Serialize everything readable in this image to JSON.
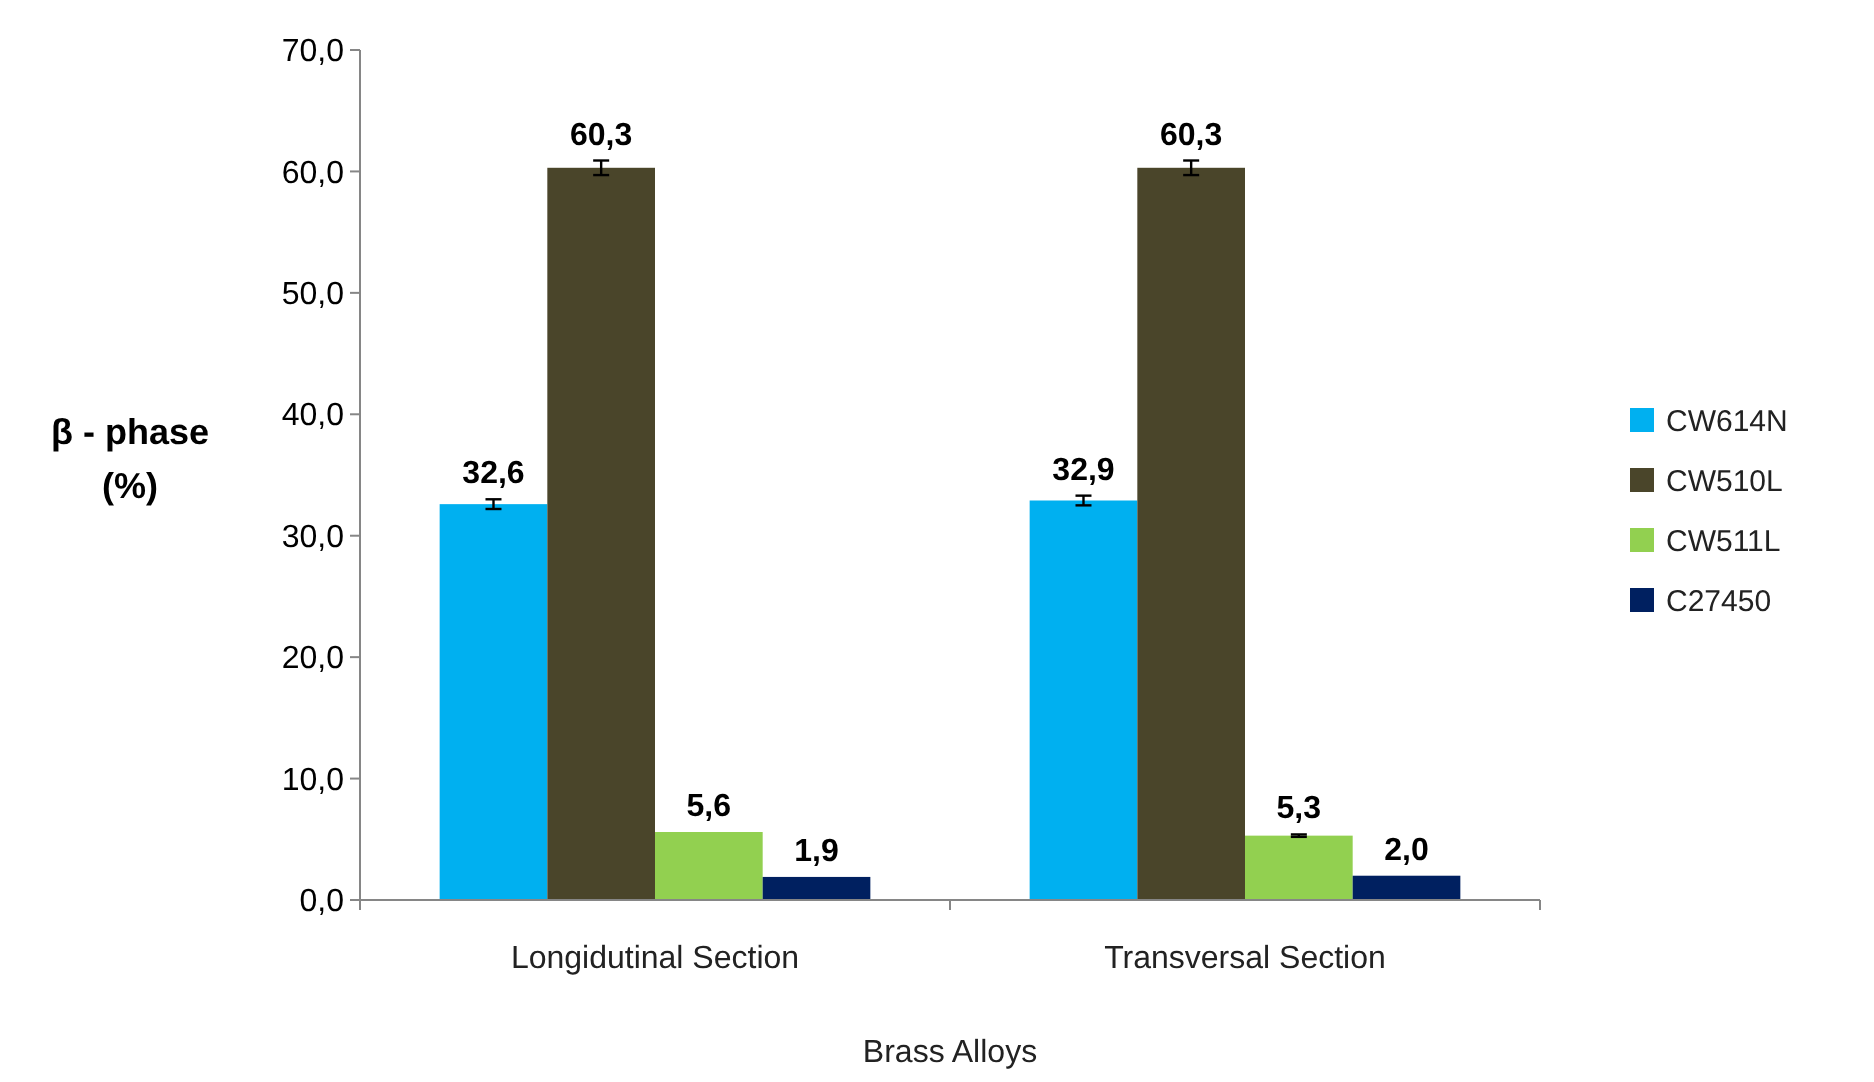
{
  "chart_data": {
    "type": "bar",
    "xlabel": "Brass Alloys",
    "ylabel": "β - phase (%)",
    "categories": [
      "Longidutinal Section",
      "Transversal Section"
    ],
    "series": [
      {
        "name": "CW614N",
        "color": "#00b0f0",
        "values": [
          32.6,
          32.9
        ],
        "errors": [
          0.4,
          0.4
        ],
        "value_labels": [
          "32,6",
          "32,9"
        ]
      },
      {
        "name": "CW510L",
        "color": "#4a452a",
        "values": [
          60.3,
          60.3
        ],
        "errors": [
          0.6,
          0.6
        ],
        "value_labels": [
          "60,3",
          "60,3"
        ]
      },
      {
        "name": "CW511L",
        "color": "#92d050",
        "values": [
          5.6,
          5.3
        ],
        "errors": [
          null,
          0.1
        ],
        "value_labels": [
          "5,6",
          "5,3"
        ]
      },
      {
        "name": "C27450",
        "color": "#002060",
        "values": [
          1.9,
          2.0
        ],
        "errors": [
          null,
          null
        ],
        "value_labels": [
          "1,9",
          "2,0"
        ]
      }
    ],
    "ylim": [
      0,
      70
    ],
    "yticks": [
      {
        "value": 0,
        "label": "0,0"
      },
      {
        "value": 10,
        "label": "10,0"
      },
      {
        "value": 20,
        "label": "20,0"
      },
      {
        "value": 30,
        "label": "30,0"
      },
      {
        "value": 40,
        "label": "40,0"
      },
      {
        "value": 50,
        "label": "50,0"
      },
      {
        "value": 60,
        "label": "60,0"
      },
      {
        "value": 70,
        "label": "70,0"
      }
    ],
    "grid": false,
    "legend": "right"
  }
}
